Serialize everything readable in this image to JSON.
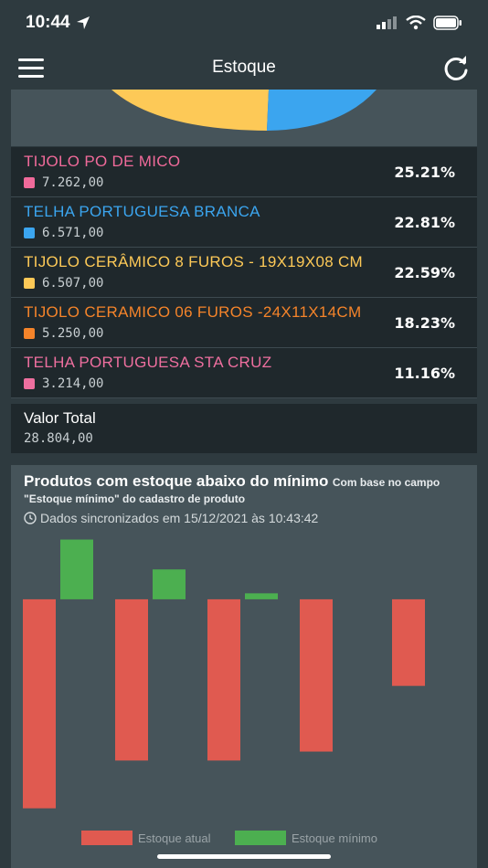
{
  "status": {
    "time": "10:44"
  },
  "header": {
    "title": "Estoque"
  },
  "legend": [
    {
      "name": "TIJOLO PO DE MICO",
      "value": "7.262,00",
      "pct": "25.21%",
      "color": "#f06a9a"
    },
    {
      "name": "TELHA PORTUGUESA BRANCA",
      "value": "6.571,00",
      "pct": "22.81%",
      "color": "#3ba5ef"
    },
    {
      "name": "TIJOLO CERÂMICO 8 FUROS - 19X19X08 CM",
      "value": "6.507,00",
      "pct": "22.59%",
      "color": "#fdc957"
    },
    {
      "name": "TIJOLO CERAMICO 06 FUROS -24X11X14CM",
      "value": "5.250,00",
      "pct": "18.23%",
      "color": "#f5842a"
    },
    {
      "name": "TELHA PORTUGUESA STA CRUZ",
      "value": "3.214,00",
      "pct": "11.16%",
      "color": "#ee6f9f"
    }
  ],
  "total": {
    "label": "Valor Total",
    "value": "28.804,00"
  },
  "chart_section": {
    "title": "Produtos com estoque abaixo do mínimo",
    "subtitle": "Com base no campo \"Estoque mínimo\" do cadastro de produto",
    "sync": "Dados sincronizados em 15/12/2021 às 10:43:42"
  },
  "chart_data": {
    "type": "bar",
    "series": [
      {
        "name": "Estoque atual",
        "color": "#e05a50",
        "values": [
          -70,
          -54,
          -54,
          -51,
          -29
        ]
      },
      {
        "name": "Estoque mínimo",
        "color": "#4caf50",
        "values": [
          20,
          10,
          2,
          0,
          0
        ]
      }
    ],
    "ylim": [
      -75,
      22
    ],
    "grid": false,
    "legend": "bottom"
  }
}
